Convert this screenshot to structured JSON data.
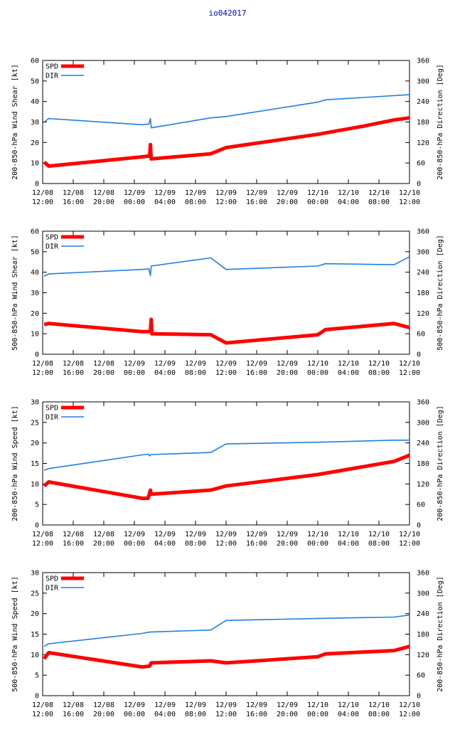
{
  "title": "io042017",
  "colors": {
    "spd": "#ff0000",
    "dir": "#1f7fe0",
    "axis": "#000000",
    "title": "#0000cc"
  },
  "x_ticks": [
    {
      "d": "12/08",
      "t": "12:00",
      "h": 0
    },
    {
      "d": "12/08",
      "t": "16:00",
      "h": 4
    },
    {
      "d": "12/08",
      "t": "20:00",
      "h": 8
    },
    {
      "d": "12/09",
      "t": "00:00",
      "h": 12
    },
    {
      "d": "12/09",
      "t": "04:00",
      "h": 16
    },
    {
      "d": "12/09",
      "t": "08:00",
      "h": 20
    },
    {
      "d": "12/09",
      "t": "12:00",
      "h": 24
    },
    {
      "d": "12/09",
      "t": "16:00",
      "h": 28
    },
    {
      "d": "12/09",
      "t": "20:00",
      "h": 32
    },
    {
      "d": "12/10",
      "t": "00:00",
      "h": 36
    },
    {
      "d": "12/10",
      "t": "04:00",
      "h": 40
    },
    {
      "d": "12/10",
      "t": "08:00",
      "h": 44
    },
    {
      "d": "12/10",
      "t": "12:00",
      "h": 48
    }
  ],
  "chart_data": [
    {
      "type": "line",
      "ylabel": "200-850-hPa Wind Shear [kt]",
      "y2label": "200-850-hPa Direction [Deg]",
      "ylim": [
        0,
        60
      ],
      "yticks": [
        0,
        10,
        20,
        30,
        40,
        50,
        60
      ],
      "y2lim": [
        0,
        360
      ],
      "y2ticks": [
        0,
        60,
        120,
        180,
        240,
        300,
        360
      ],
      "xlim": [
        0,
        48
      ],
      "series": [
        {
          "name": "SPD",
          "axis": "y",
          "points": [
            [
              0.2,
              10.5
            ],
            [
              0.8,
              8.5
            ],
            [
              13,
              13
            ],
            [
              14,
              13.5
            ],
            [
              14.1,
              19
            ],
            [
              14.2,
              12
            ],
            [
              22,
              14.5
            ],
            [
              24,
              17.5
            ],
            [
              36,
              24
            ],
            [
              42,
              28
            ],
            [
              46,
              31
            ],
            [
              48,
              32
            ]
          ]
        },
        {
          "name": "DIR",
          "axis": "y2",
          "points": [
            [
              0.2,
              180
            ],
            [
              0.8,
              190
            ],
            [
              13,
              172
            ],
            [
              13.9,
              174
            ],
            [
              14.1,
              190
            ],
            [
              14.2,
              163
            ],
            [
              22,
              192
            ],
            [
              24,
              196
            ],
            [
              36,
              238
            ],
            [
              37,
              245
            ],
            [
              48,
              260
            ]
          ]
        }
      ]
    },
    {
      "type": "line",
      "ylabel": "500-850-hPa Wind Shear [kt]",
      "y2label": "500-850-hPa Direction [Deg]",
      "ylim": [
        0,
        60
      ],
      "yticks": [
        0,
        10,
        20,
        30,
        40,
        50,
        60
      ],
      "y2lim": [
        0,
        360
      ],
      "y2ticks": [
        0,
        60,
        120,
        180,
        240,
        300,
        360
      ],
      "xlim": [
        0,
        48
      ],
      "series": [
        {
          "name": "SPD",
          "axis": "y",
          "points": [
            [
              0.2,
              14.5
            ],
            [
              0.8,
              15
            ],
            [
              13,
              11
            ],
            [
              14.1,
              11
            ],
            [
              14.2,
              17
            ],
            [
              14.3,
              10
            ],
            [
              22,
              9.5
            ],
            [
              24,
              5.5
            ],
            [
              36,
              9.5
            ],
            [
              37,
              12
            ],
            [
              46,
              15
            ],
            [
              48,
              13
            ]
          ]
        },
        {
          "name": "DIR",
          "axis": "y2",
          "points": [
            [
              0.2,
              228
            ],
            [
              0.8,
              235
            ],
            [
              13,
              248
            ],
            [
              13.9,
              250
            ],
            [
              14.1,
              230
            ],
            [
              14.2,
              258
            ],
            [
              22,
              282
            ],
            [
              24,
              248
            ],
            [
              36,
              258
            ],
            [
              37,
              265
            ],
            [
              46,
              262
            ],
            [
              48,
              285
            ]
          ]
        }
      ]
    },
    {
      "type": "line",
      "ylabel": "200-850-hPa Wind Speed [kt]",
      "y2label": "200-850-hPa Direction [Deg]",
      "ylim": [
        0,
        30
      ],
      "yticks": [
        0,
        5,
        10,
        15,
        20,
        25,
        30
      ],
      "y2lim": [
        0,
        360
      ],
      "y2ticks": [
        0,
        60,
        120,
        180,
        240,
        300,
        360
      ],
      "xlim": [
        0,
        48
      ],
      "series": [
        {
          "name": "SPD",
          "axis": "y",
          "points": [
            [
              0.2,
              9.5
            ],
            [
              0.8,
              10.5
            ],
            [
              13,
              6.5
            ],
            [
              13.8,
              6.5
            ],
            [
              14.1,
              8.5
            ],
            [
              14.2,
              7.5
            ],
            [
              22,
              8.5
            ],
            [
              24,
              9.5
            ],
            [
              36,
              12.3
            ],
            [
              46,
              15.5
            ],
            [
              48,
              17
            ]
          ]
        },
        {
          "name": "DIR",
          "axis": "y2",
          "points": [
            [
              0.2,
              160
            ],
            [
              0.8,
              165
            ],
            [
              13,
              205
            ],
            [
              13.8,
              207
            ],
            [
              14,
              202
            ],
            [
              14.2,
              206
            ],
            [
              22,
              212
            ],
            [
              24,
              237
            ],
            [
              36,
              242
            ],
            [
              46,
              248
            ],
            [
              48,
              248
            ]
          ]
        }
      ]
    },
    {
      "type": "line",
      "ylabel": "500-850-hPa Wind Speed [kt]",
      "y2label": "200-850-hPa Direction [Deg]",
      "ylim": [
        0,
        30
      ],
      "yticks": [
        0,
        5,
        10,
        15,
        20,
        25,
        30
      ],
      "y2lim": [
        0,
        360
      ],
      "y2ticks": [
        0,
        60,
        120,
        180,
        240,
        300,
        360
      ],
      "xlim": [
        0,
        48
      ],
      "series": [
        {
          "name": "SPD",
          "axis": "y",
          "points": [
            [
              0.2,
              9
            ],
            [
              0.8,
              10.5
            ],
            [
              13,
              7
            ],
            [
              14,
              7.2
            ],
            [
              14.2,
              8
            ],
            [
              22,
              8.5
            ],
            [
              24,
              8
            ],
            [
              36,
              9.5
            ],
            [
              37,
              10.2
            ],
            [
              46,
              11
            ],
            [
              48,
              12
            ]
          ]
        },
        {
          "name": "DIR",
          "axis": "y2",
          "points": [
            [
              0.2,
              145
            ],
            [
              0.8,
              152
            ],
            [
              13,
              182
            ],
            [
              14,
              186
            ],
            [
              22,
              192
            ],
            [
              24,
              220
            ],
            [
              36,
              226
            ],
            [
              46,
              230
            ],
            [
              48,
              236
            ]
          ]
        }
      ]
    }
  ]
}
